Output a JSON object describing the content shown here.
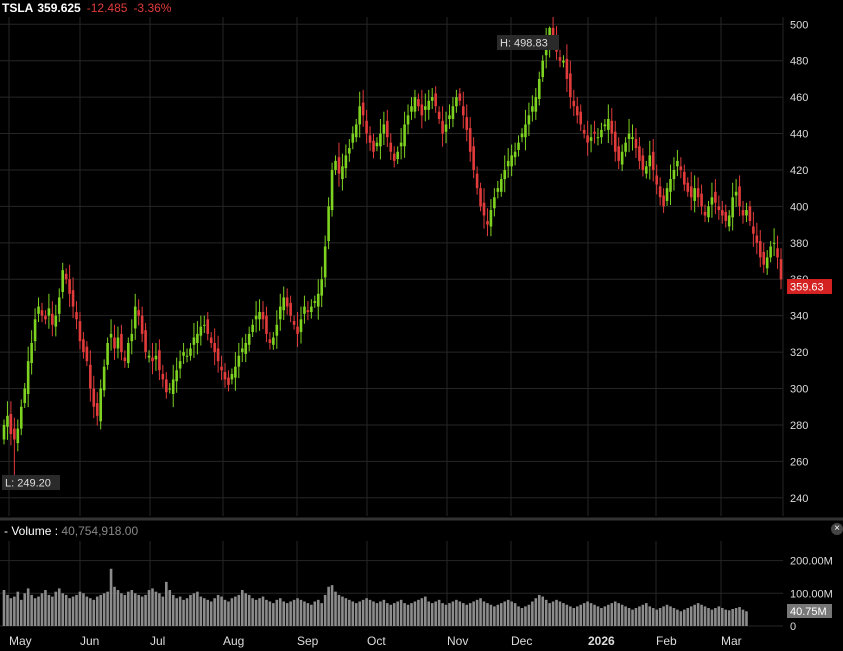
{
  "ticker": {
    "symbol": "TSLA",
    "price": "359.625",
    "change": "-12.485",
    "change_pct": "-3.36%",
    "last_badge": "359.63"
  },
  "annotations": {
    "high_label": "H: 498.83",
    "low_label": "L: 249.20"
  },
  "volume_panel": {
    "dash": "-",
    "label": "Volume :",
    "value": "40,754,918.00",
    "last_badge": "40.75M",
    "axis_labels": [
      "200.00M",
      "100.00M",
      "0"
    ]
  },
  "colors": {
    "up": "#7ed321",
    "down": "#e23b3b",
    "grid": "#262626",
    "volume": "#8c8c8c",
    "background": "#000000"
  },
  "chart_data": [
    {
      "type": "candlestick",
      "y_ticks": [
        240,
        260,
        280,
        300,
        320,
        340,
        360,
        380,
        400,
        420,
        440,
        460,
        480,
        500
      ],
      "ylim": [
        230,
        504
      ],
      "x_ticks": [
        "May",
        "Jun",
        "Jul",
        "Aug",
        "Sep",
        "Oct",
        "Nov",
        "Dec",
        "2026",
        "Feb",
        "Mar"
      ],
      "high": 498.83,
      "low": 249.2,
      "last": 359.63,
      "closes": [
        280,
        285,
        275,
        272,
        278,
        290,
        300,
        315,
        325,
        338,
        345,
        340,
        338,
        344,
        335,
        340,
        350,
        365,
        360,
        352,
        345,
        338,
        326,
        320,
        315,
        300,
        290,
        285,
        300,
        312,
        325,
        330,
        322,
        328,
        320,
        315,
        325,
        330,
        345,
        340,
        330,
        320,
        318,
        315,
        318,
        310,
        305,
        298,
        300,
        305,
        310,
        315,
        320,
        318,
        322,
        328,
        330,
        334,
        335,
        330,
        325,
        320,
        315,
        310,
        305,
        302,
        308,
        312,
        318,
        322,
        325,
        330,
        335,
        340,
        342,
        338,
        330,
        325,
        328,
        335,
        345,
        350,
        345,
        340,
        335,
        330,
        338,
        345,
        342,
        345,
        348,
        352,
        360,
        378,
        400,
        420,
        425,
        418,
        422,
        428,
        432,
        440,
        445,
        455,
        450,
        440,
        435,
        430,
        435,
        440,
        445,
        438,
        430,
        425,
        430,
        435,
        445,
        450,
        455,
        460,
        455,
        450,
        455,
        458,
        460,
        455,
        448,
        440,
        445,
        450,
        455,
        460,
        458,
        450,
        442,
        430,
        420,
        410,
        400,
        395,
        390,
        398,
        405,
        410,
        415,
        420,
        425,
        428,
        430,
        435,
        440,
        445,
        450,
        455,
        460,
        470,
        480,
        490,
        498,
        492,
        485,
        480,
        480,
        470,
        460,
        455,
        450,
        445,
        440,
        435,
        438,
        440,
        438,
        442,
        445,
        448,
        440,
        430,
        425,
        430,
        435,
        440,
        438,
        432,
        425,
        420,
        422,
        428,
        420,
        412,
        405,
        400,
        410,
        415,
        420,
        425,
        420,
        412,
        408,
        405,
        410,
        405,
        400,
        395,
        400,
        405,
        402,
        398,
        395,
        392,
        395,
        405,
        408,
        400,
        395,
        398,
        392,
        385,
        380,
        372,
        368,
        372,
        378,
        380,
        372,
        360
      ]
    },
    {
      "type": "bar",
      "name": "Volume",
      "ylim": [
        0,
        260000000
      ],
      "volumes": [
        110,
        95,
        85,
        90,
        105,
        80,
        100,
        115,
        95,
        85,
        90,
        100,
        110,
        95,
        90,
        105,
        115,
        100,
        95,
        85,
        90,
        95,
        105,
        100,
        90,
        85,
        80,
        90,
        95,
        100,
        105,
        175,
        120,
        110,
        100,
        95,
        105,
        110,
        100,
        95,
        90,
        95,
        110,
        115,
        105,
        100,
        90,
        135,
        110,
        95,
        85,
        90,
        80,
        85,
        95,
        100,
        105,
        90,
        85,
        80,
        75,
        85,
        95,
        90,
        80,
        75,
        85,
        90,
        95,
        110,
        100,
        95,
        85,
        80,
        85,
        90,
        80,
        75,
        70,
        80,
        85,
        75,
        70,
        75,
        80,
        85,
        80,
        75,
        70,
        65,
        75,
        80,
        70,
        95,
        120,
        125,
        105,
        95,
        90,
        85,
        80,
        75,
        70,
        75,
        80,
        85,
        80,
        75,
        70,
        75,
        80,
        70,
        65,
        70,
        75,
        80,
        70,
        65,
        70,
        75,
        80,
        85,
        90,
        75,
        70,
        75,
        80,
        70,
        65,
        70,
        75,
        80,
        75,
        70,
        65,
        70,
        75,
        80,
        85,
        75,
        70,
        65,
        60,
        65,
        70,
        75,
        80,
        75,
        70,
        60,
        55,
        60,
        65,
        75,
        85,
        95,
        90,
        80,
        70,
        75,
        80,
        75,
        70,
        65,
        60,
        55,
        60,
        65,
        70,
        75,
        70,
        65,
        60,
        55,
        60,
        65,
        70,
        75,
        70,
        65,
        60,
        55,
        50,
        55,
        60,
        65,
        70,
        60,
        55,
        50,
        55,
        60,
        65,
        60,
        55,
        50,
        45,
        50,
        55,
        60,
        65,
        70,
        65,
        60,
        55,
        50,
        55,
        60,
        55,
        50,
        48,
        52,
        55,
        58,
        50,
        45
      ]
    }
  ]
}
